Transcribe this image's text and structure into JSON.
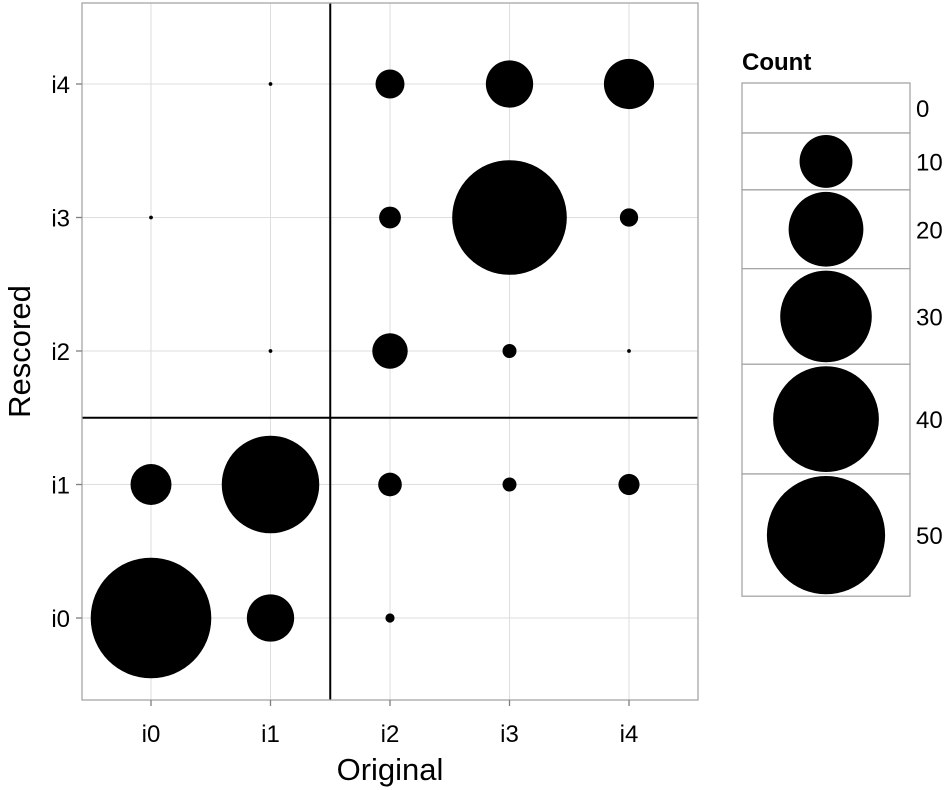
{
  "chart_data": {
    "type": "scatter",
    "subtype": "balloon",
    "title": "",
    "xlabel": "Original",
    "ylabel": "Rescored",
    "x_categories": [
      "i0",
      "i1",
      "i2",
      "i3",
      "i4"
    ],
    "y_categories": [
      "i0",
      "i1",
      "i2",
      "i3",
      "i4"
    ],
    "points": [
      {
        "x": "i0",
        "y": "i0",
        "count": 52
      },
      {
        "x": "i1",
        "y": "i0",
        "count": 8
      },
      {
        "x": "i2",
        "y": "i0",
        "count": 0.3
      },
      {
        "x": "i0",
        "y": "i1",
        "count": 6
      },
      {
        "x": "i1",
        "y": "i1",
        "count": 34
      },
      {
        "x": "i2",
        "y": "i1",
        "count": 2
      },
      {
        "x": "i3",
        "y": "i1",
        "count": 0.7
      },
      {
        "x": "i4",
        "y": "i1",
        "count": 1.6
      },
      {
        "x": "i1",
        "y": "i2",
        "count": 0.05
      },
      {
        "x": "i2",
        "y": "i2",
        "count": 4.5
      },
      {
        "x": "i3",
        "y": "i2",
        "count": 0.7
      },
      {
        "x": "i4",
        "y": "i2",
        "count": 0.05
      },
      {
        "x": "i0",
        "y": "i3",
        "count": 0.05
      },
      {
        "x": "i2",
        "y": "i3",
        "count": 1.7
      },
      {
        "x": "i3",
        "y": "i3",
        "count": 47
      },
      {
        "x": "i4",
        "y": "i3",
        "count": 1.2
      },
      {
        "x": "i1",
        "y": "i4",
        "count": 0.05
      },
      {
        "x": "i2",
        "y": "i4",
        "count": 3
      },
      {
        "x": "i3",
        "y": "i4",
        "count": 8
      },
      {
        "x": "i4",
        "y": "i4",
        "count": 9
      }
    ],
    "dividers": {
      "x_between": [
        "i1",
        "i2"
      ],
      "y_between": [
        "i1",
        "i2"
      ]
    },
    "grid": true,
    "size_max": 55,
    "legend": {
      "title": "Count",
      "position": "right",
      "values": [
        0,
        10,
        20,
        30,
        40,
        50
      ],
      "labels": [
        "0",
        "10",
        "20",
        "30",
        "40",
        "50"
      ]
    },
    "colors": {
      "point": "#000000",
      "grid": "#dedede",
      "panel_border": "#a6a6a6",
      "divider": "#000000",
      "tick": "#7f7f7f"
    }
  }
}
